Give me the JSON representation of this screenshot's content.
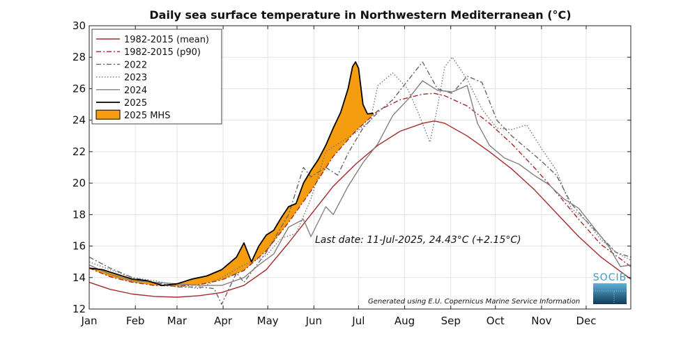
{
  "chart_data": {
    "type": "line",
    "title": "Daily sea surface temperature in Northwestern Mediterranean (°C)",
    "xlabel": "",
    "ylabel": "",
    "x_unit": "day of year",
    "x_range": [
      1,
      365
    ],
    "ylim": [
      12,
      30
    ],
    "yticks": [
      "12",
      "14",
      "16",
      "18",
      "20",
      "22",
      "24",
      "26",
      "28",
      "30"
    ],
    "month_ticks": [
      "Jan",
      "Feb",
      "Mar",
      "Apr",
      "May",
      "Jun",
      "Jul",
      "Aug",
      "Sep",
      "Oct",
      "Nov",
      "Dec"
    ],
    "grid": true,
    "legend_position": "top-left",
    "series": [
      {
        "name": "1982-2015 (mean)",
        "style": "solid",
        "color": "#a52a2a",
        "x": [
          1,
          15,
          30,
          45,
          60,
          75,
          90,
          105,
          120,
          135,
          150,
          165,
          180,
          195,
          210,
          225,
          233,
          240,
          255,
          270,
          285,
          300,
          315,
          330,
          345,
          365
        ],
        "y": [
          13.7,
          13.25,
          12.95,
          12.8,
          12.75,
          12.85,
          13.05,
          13.5,
          14.5,
          16.2,
          18.0,
          19.8,
          21.2,
          22.4,
          23.3,
          23.8,
          23.95,
          23.8,
          23.0,
          22.0,
          20.9,
          19.6,
          18.1,
          16.6,
          15.3,
          13.9
        ]
      },
      {
        "name": "1982-2015 (p90)",
        "style": "dashdot",
        "color": "#a52a2a",
        "x": [
          1,
          15,
          30,
          45,
          60,
          75,
          90,
          105,
          120,
          135,
          150,
          165,
          180,
          195,
          210,
          225,
          233,
          240,
          255,
          270,
          285,
          300,
          315,
          330,
          345,
          365
        ],
        "y": [
          14.6,
          14.05,
          13.7,
          13.5,
          13.45,
          13.55,
          13.85,
          14.45,
          15.7,
          17.5,
          19.5,
          21.7,
          23.3,
          24.6,
          25.3,
          25.65,
          25.7,
          25.55,
          24.9,
          23.8,
          22.5,
          21.0,
          19.4,
          17.7,
          16.1,
          14.7
        ]
      },
      {
        "name": "2022",
        "style": "dashdot",
        "color": "#666666",
        "x": [
          1,
          15,
          30,
          45,
          60,
          75,
          85,
          90,
          100,
          105,
          120,
          135,
          145,
          150,
          160,
          168,
          175,
          185,
          195,
          205,
          215,
          225,
          235,
          245,
          255,
          265,
          275,
          285,
          295,
          305,
          315,
          325,
          335,
          345,
          355,
          365
        ],
        "y": [
          15.3,
          14.6,
          14.0,
          13.7,
          13.4,
          13.4,
          13.3,
          12.3,
          14.3,
          13.7,
          15.6,
          18.0,
          21.0,
          20.4,
          21.0,
          20.5,
          21.9,
          23.5,
          24.5,
          25.3,
          26.5,
          27.7,
          26.0,
          25.7,
          26.8,
          26.4,
          24.0,
          23.0,
          22.2,
          21.4,
          20.5,
          18.7,
          17.6,
          16.6,
          15.6,
          15.3
        ]
      },
      {
        "name": "2023",
        "style": "dotted",
        "color": "#777777",
        "x": [
          1,
          15,
          30,
          45,
          60,
          75,
          90,
          105,
          120,
          130,
          140,
          150,
          160,
          170,
          180,
          190,
          195,
          205,
          215,
          222,
          230,
          235,
          240,
          245,
          255,
          265,
          275,
          285,
          295,
          305,
          315,
          325,
          335,
          345,
          355,
          365
        ],
        "y": [
          15.0,
          14.5,
          14.0,
          13.8,
          13.5,
          13.3,
          14.0,
          14.8,
          15.4,
          16.5,
          16.8,
          19.0,
          22.0,
          22.6,
          23.2,
          24.0,
          26.2,
          27.0,
          26.0,
          24.5,
          22.6,
          24.8,
          27.4,
          28.0,
          26.6,
          24.7,
          23.5,
          23.4,
          23.7,
          22.2,
          20.8,
          18.4,
          17.6,
          16.4,
          15.6,
          15.1
        ]
      },
      {
        "name": "2024",
        "style": "solid",
        "color": "#808080",
        "x": [
          1,
          15,
          30,
          45,
          60,
          75,
          90,
          105,
          115,
          125,
          135,
          145,
          150,
          160,
          165,
          175,
          185,
          195,
          205,
          215,
          225,
          235,
          245,
          255,
          262,
          270,
          280,
          290,
          300,
          310,
          320,
          330,
          340,
          350,
          358,
          365
        ],
        "y": [
          14.8,
          14.2,
          13.8,
          13.7,
          13.6,
          13.5,
          13.5,
          14.0,
          14.8,
          15.5,
          17.2,
          17.7,
          16.6,
          18.5,
          18.0,
          19.8,
          21.3,
          22.5,
          24.3,
          25.3,
          26.5,
          25.9,
          25.8,
          26.2,
          23.8,
          22.4,
          21.6,
          21.2,
          20.5,
          19.9,
          19.0,
          18.4,
          17.2,
          16.0,
          14.7,
          14.8
        ]
      },
      {
        "name": "2025",
        "style": "solid",
        "color": "#000000",
        "x": [
          1,
          10,
          20,
          30,
          40,
          50,
          60,
          70,
          80,
          90,
          100,
          105,
          110,
          115,
          120,
          125,
          130,
          135,
          140,
          145,
          150,
          155,
          160,
          165,
          170,
          175,
          178,
          180,
          182,
          185,
          188,
          192
        ],
        "y": [
          14.6,
          14.5,
          14.2,
          13.9,
          13.8,
          13.5,
          13.6,
          13.9,
          14.1,
          14.5,
          15.3,
          16.2,
          15.0,
          16.0,
          16.7,
          17.0,
          17.8,
          18.5,
          18.7,
          20.0,
          20.8,
          21.5,
          22.4,
          23.5,
          24.5,
          26.0,
          27.4,
          27.7,
          27.3,
          25.0,
          24.4,
          24.43
        ]
      }
    ],
    "mhs": {
      "name": "2025 MHS",
      "color": "#f59d0e",
      "description_source": "area between 2025 and 1982-2015 (p90) where 2025 exceeds p90"
    },
    "annotations": {
      "last_date": "Last date: 11-Jul-2025, 24.43°C (+2.15°C)",
      "credit": "Generated using E.U. Copernicus Marine Service Information",
      "logo": "SOCIB"
    }
  }
}
